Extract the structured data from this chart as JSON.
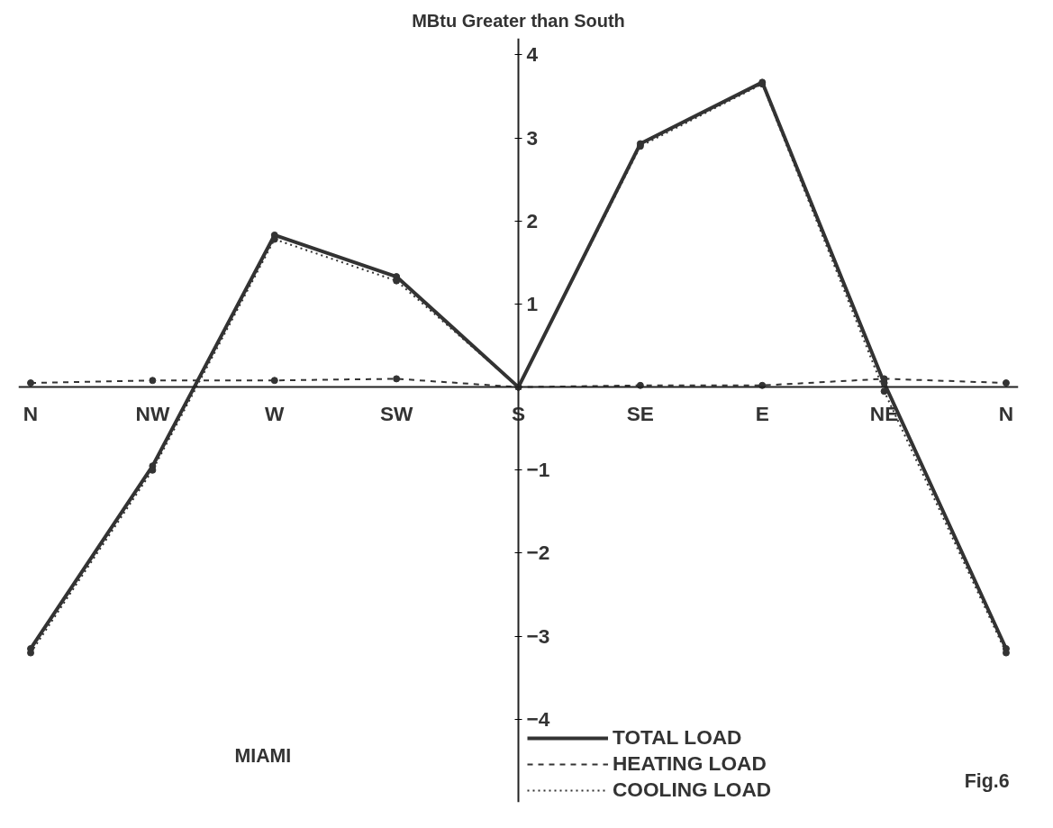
{
  "chart_data": {
    "type": "line",
    "ylabel": "MBtu Greater than South",
    "categories": [
      "N",
      "NW",
      "W",
      "SW",
      "S",
      "SE",
      "E",
      "NE",
      "N"
    ],
    "series": [
      {
        "name": "TOTAL LOAD",
        "color": "#333333",
        "line_style": "solid",
        "values": [
          -3.15,
          -0.95,
          1.83,
          1.33,
          0,
          2.93,
          3.67,
          0.05,
          -3.15
        ]
      },
      {
        "name": "HEATING LOAD",
        "color": "#333333",
        "line_style": "dashed",
        "values": [
          0.05,
          0.08,
          0.08,
          0.1,
          0,
          0.02,
          0.02,
          0.1,
          0.05
        ]
      },
      {
        "name": "COOLING LOAD",
        "color": "#333333",
        "line_style": "dotted",
        "values": [
          -3.2,
          -1.0,
          1.78,
          1.28,
          0,
          2.9,
          3.65,
          -0.05,
          -3.2
        ]
      }
    ],
    "ylim": [
      -5,
      4.2
    ],
    "yticks": [
      -4,
      -3,
      -2,
      -1,
      1,
      2,
      3,
      4
    ],
    "marker": "circle",
    "grid": false,
    "legend": "bottom",
    "annotations": [
      "MIAMI",
      "Fig.6"
    ]
  }
}
